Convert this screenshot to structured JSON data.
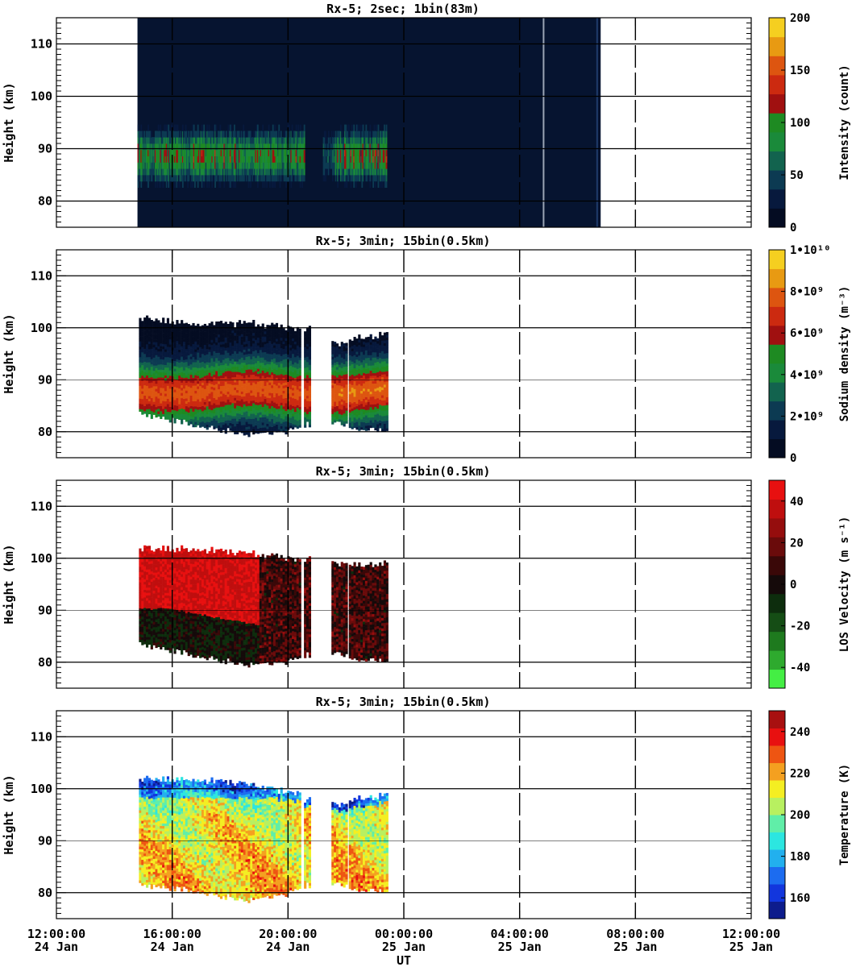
{
  "figure": {
    "xaxis_label": "UT",
    "x_ticks": [
      {
        "time": "12:00:00",
        "date": "24 Jan",
        "hour": 0
      },
      {
        "time": "16:00:00",
        "date": "24 Jan",
        "hour": 4
      },
      {
        "time": "20:00:00",
        "date": "24 Jan",
        "hour": 8
      },
      {
        "time": "00:00:00",
        "date": "25 Jan",
        "hour": 12
      },
      {
        "time": "04:00:00",
        "date": "25 Jan",
        "hour": 16
      },
      {
        "time": "08:00:00",
        "date": "25 Jan",
        "hour": 20
      },
      {
        "time": "12:00:00",
        "date": "25 Jan",
        "hour": 24
      }
    ]
  },
  "chart_data": [
    {
      "type": "heatmap",
      "title": "Rx-5;  2sec; 1bin(83m)",
      "ylabel": "Height (km)",
      "ylim": [
        75,
        115
      ],
      "yticks": [
        80,
        90,
        100,
        110
      ],
      "x_unit": "hours since 12:00:00 24 Jan",
      "xlim": [
        0,
        24
      ],
      "colorbar": {
        "label": "Intensity (count)",
        "range": [
          0,
          200
        ],
        "tick_labels": [
          {
            "v": 0,
            "t": "0"
          },
          {
            "v": 50,
            "t": "50"
          },
          {
            "v": 100,
            "t": "100"
          },
          {
            "v": 150,
            "t": "150"
          },
          {
            "v": 200,
            "t": "200"
          }
        ],
        "colors": [
          "#040c22",
          "#07193d",
          "#0c3a52",
          "#12634e",
          "#1a8a3a",
          "#1e8a22",
          "#a01010",
          "#cc2a10",
          "#dd5510",
          "#e89a12",
          "#f5cf20"
        ]
      },
      "data_extent": {
        "t_start": 2.8,
        "t_end": 18.8,
        "background": "#061430"
      },
      "sodium_layer": {
        "center_km": 88,
        "half_width_km": 5,
        "peak_count": 120,
        "gaps": [
          [
            8.55,
            9.2
          ],
          [
            11.4,
            12.0
          ]
        ]
      }
    },
    {
      "type": "heatmap",
      "title": "Rx-5; 3min; 15bin(0.5km)",
      "ylabel": "Height (km)",
      "ylim": [
        75,
        115
      ],
      "yticks": [
        80,
        90,
        100,
        110
      ],
      "xlim": [
        0,
        24
      ],
      "colorbar": {
        "label": "Sodium density (m⁻³)",
        "range": [
          0,
          10000000000.0
        ],
        "tick_labels": [
          {
            "v": 0,
            "t": "0"
          },
          {
            "v": 2000000000.0,
            "t": "2•10⁹"
          },
          {
            "v": 4000000000.0,
            "t": "4•10⁹"
          },
          {
            "v": 6000000000.0,
            "t": "6•10⁹"
          },
          {
            "v": 8000000000.0,
            "t": "8•10⁹"
          },
          {
            "v": 10000000000.0,
            "t": "1•10¹⁰"
          }
        ],
        "colors": [
          "#040c22",
          "#07193d",
          "#0c3a52",
          "#12634e",
          "#1a8a3a",
          "#1e8a22",
          "#a01010",
          "#cc2a10",
          "#dd5510",
          "#e89a12",
          "#f5cf20"
        ]
      },
      "segments": [
        {
          "t0": 2.85,
          "t1": 8.45,
          "bottom_km": [
            84,
            82,
            80,
            81
          ],
          "top_km": [
            101,
            100,
            100,
            99
          ]
        },
        {
          "t0": 8.55,
          "t1": 8.75,
          "bottom_km": [
            82,
            82
          ],
          "top_km": [
            99,
            99
          ]
        },
        {
          "t0": 9.5,
          "t1": 10.0,
          "bottom_km": [
            82,
            82
          ],
          "top_km": [
            96,
            96
          ]
        },
        {
          "t0": 10.1,
          "t1": 11.45,
          "bottom_km": [
            81,
            81
          ],
          "top_km": [
            97,
            98
          ]
        }
      ]
    },
    {
      "type": "heatmap",
      "title": "Rx-5; 3min; 15bin(0.5km)",
      "ylabel": "Height (km)",
      "ylim": [
        75,
        115
      ],
      "yticks": [
        80,
        90,
        100,
        110
      ],
      "xlim": [
        0,
        24
      ],
      "colorbar": {
        "label": "LOS Velocity (m s⁻¹)",
        "range": [
          -50,
          50
        ],
        "tick_labels": [
          {
            "v": -40,
            "t": "-40"
          },
          {
            "v": -20,
            "t": "-20"
          },
          {
            "v": 0,
            "t": "0"
          },
          {
            "v": 20,
            "t": "20"
          },
          {
            "v": 40,
            "t": "40"
          }
        ],
        "colors": [
          "#44ee44",
          "#2eaa2e",
          "#1e7a1e",
          "#154d15",
          "#0d2d0d",
          "#150a0a",
          "#3a0808",
          "#6a0b0b",
          "#950d0d",
          "#bf0e0e",
          "#e81010"
        ]
      },
      "segments": [
        {
          "t0": 2.85,
          "t1": 8.45,
          "bottom_km": [
            84,
            82,
            80,
            81
          ],
          "top_km": [
            101,
            101,
            100,
            99
          ]
        },
        {
          "t0": 8.55,
          "t1": 8.75,
          "bottom_km": [
            82,
            82
          ],
          "top_km": [
            99,
            99
          ]
        },
        {
          "t0": 9.5,
          "t1": 10.0,
          "bottom_km": [
            82,
            82
          ],
          "top_km": [
            98,
            98
          ]
        },
        {
          "t0": 10.1,
          "t1": 11.45,
          "bottom_km": [
            81,
            81
          ],
          "top_km": [
            98,
            98
          ]
        }
      ]
    },
    {
      "type": "heatmap",
      "title": "Rx-5; 3min; 15bin(0.5km)",
      "ylabel": "Height (km)",
      "ylim": [
        75,
        115
      ],
      "yticks": [
        80,
        90,
        100,
        110
      ],
      "xlim": [
        0,
        24
      ],
      "colorbar": {
        "label": "Temperature (K)",
        "range": [
          150,
          250
        ],
        "tick_labels": [
          {
            "v": 160,
            "t": "160"
          },
          {
            "v": 180,
            "t": "180"
          },
          {
            "v": 200,
            "t": "200"
          },
          {
            "v": 220,
            "t": "220"
          },
          {
            "v": 240,
            "t": "240"
          }
        ],
        "colors": [
          "#0d1c8c",
          "#1236dd",
          "#1c6cf0",
          "#22b0ee",
          "#2ce6e0",
          "#60eea8",
          "#b8f060",
          "#f4ee22",
          "#f4a020",
          "#ee5512",
          "#e81010",
          "#a81010"
        ]
      },
      "segments": [
        {
          "t0": 2.85,
          "t1": 8.45,
          "bottom_km": [
            82,
            81,
            79,
            81
          ],
          "top_km": [
            101,
            101,
            100,
            98
          ]
        },
        {
          "t0": 8.55,
          "t1": 8.75,
          "bottom_km": [
            82,
            82
          ],
          "top_km": [
            97,
            97
          ]
        },
        {
          "t0": 9.5,
          "t1": 10.0,
          "bottom_km": [
            82,
            82
          ],
          "top_km": [
            96,
            96
          ]
        },
        {
          "t0": 10.1,
          "t1": 11.45,
          "bottom_km": [
            81,
            81
          ],
          "top_km": [
            97,
            98
          ]
        }
      ]
    }
  ]
}
